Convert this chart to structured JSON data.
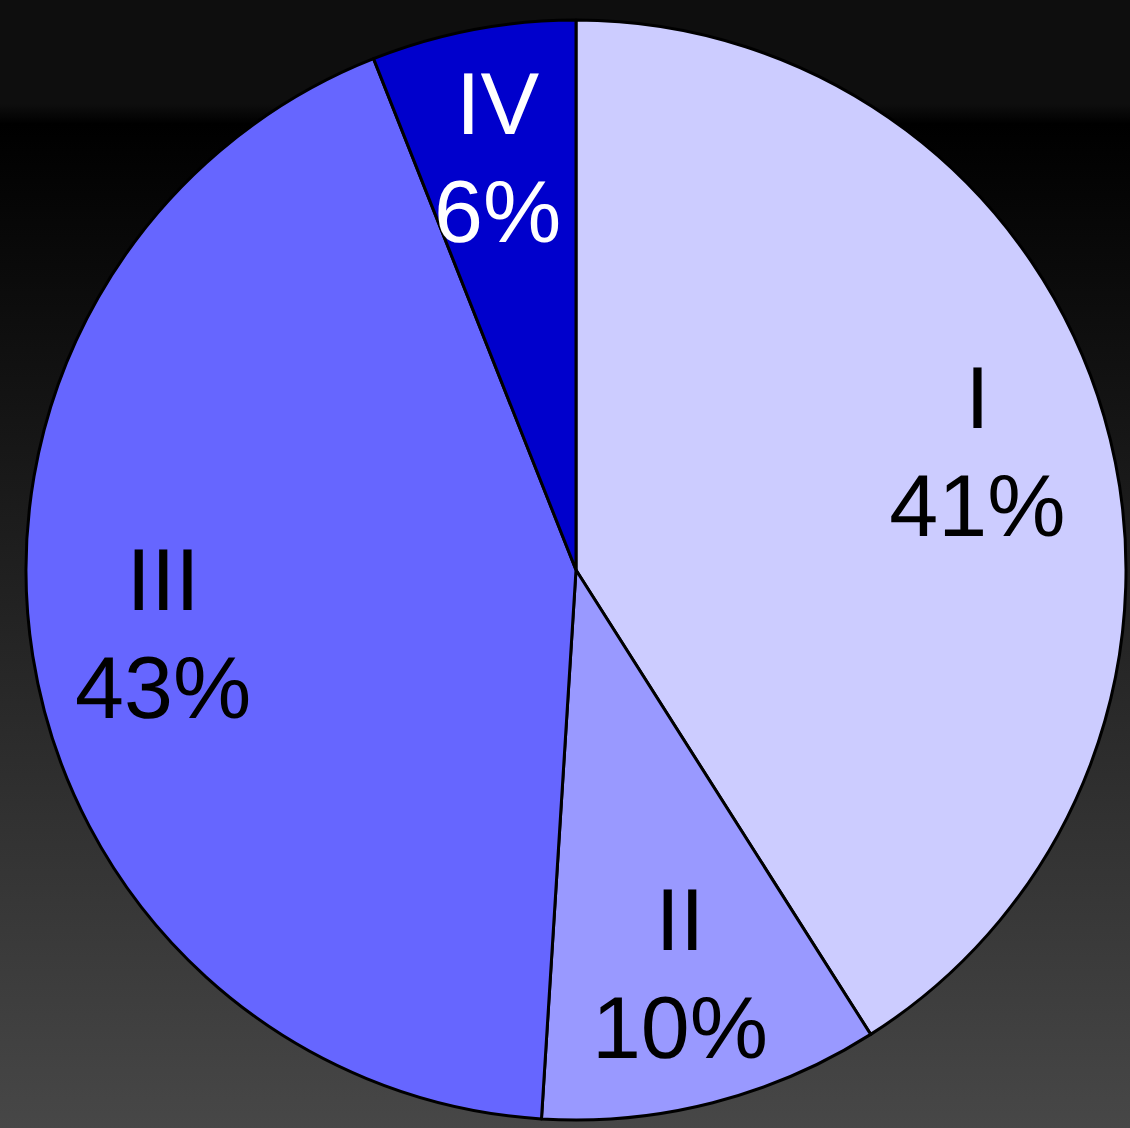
{
  "chart_data": {
    "type": "pie",
    "categories": [
      "I",
      "II",
      "III",
      "IV"
    ],
    "values": [
      41,
      10,
      43,
      6
    ],
    "colors": [
      "#ccccff",
      "#9999ff",
      "#6666ff",
      "#0000cc"
    ],
    "value_labels": [
      "41%",
      "10%",
      "43%",
      "6%"
    ]
  }
}
